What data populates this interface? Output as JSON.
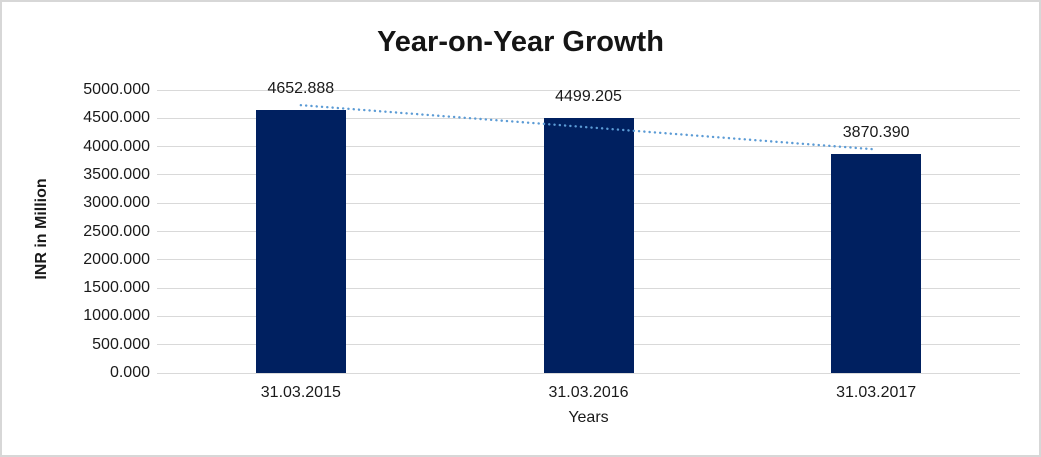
{
  "frame": {
    "background_color": "#FFFFFF",
    "border_color": "#D7D7D7"
  },
  "chart_data": {
    "type": "bar",
    "title": "Year-on-Year Growth",
    "categories": [
      "31.03.2015",
      "31.03.2016",
      "31.03.2017"
    ],
    "values": [
      4652.888,
      4499.205,
      3870.39
    ],
    "data_labels": [
      "4652.888",
      "4499.205",
      "3870.390"
    ],
    "xlabel": "Years",
    "ylabel": "INR in Million",
    "ylim": [
      0,
      5000
    ],
    "ytick_step": 500,
    "ytick_labels": [
      "5000.000",
      "4500.000",
      "4000.000",
      "3500.000",
      "3000.000",
      "2500.000",
      "2000.000",
      "1500.000",
      "1000.000",
      "500.000",
      "0.000"
    ],
    "grid": true,
    "legend_position": "none",
    "bar_color": "#002060",
    "gridline_color": "#D9D9D9",
    "trendline": {
      "type": "linear",
      "style": "dotted",
      "color": "#5B9BD5",
      "start_value": 4732.1,
      "end_value": 3949.6
    }
  }
}
